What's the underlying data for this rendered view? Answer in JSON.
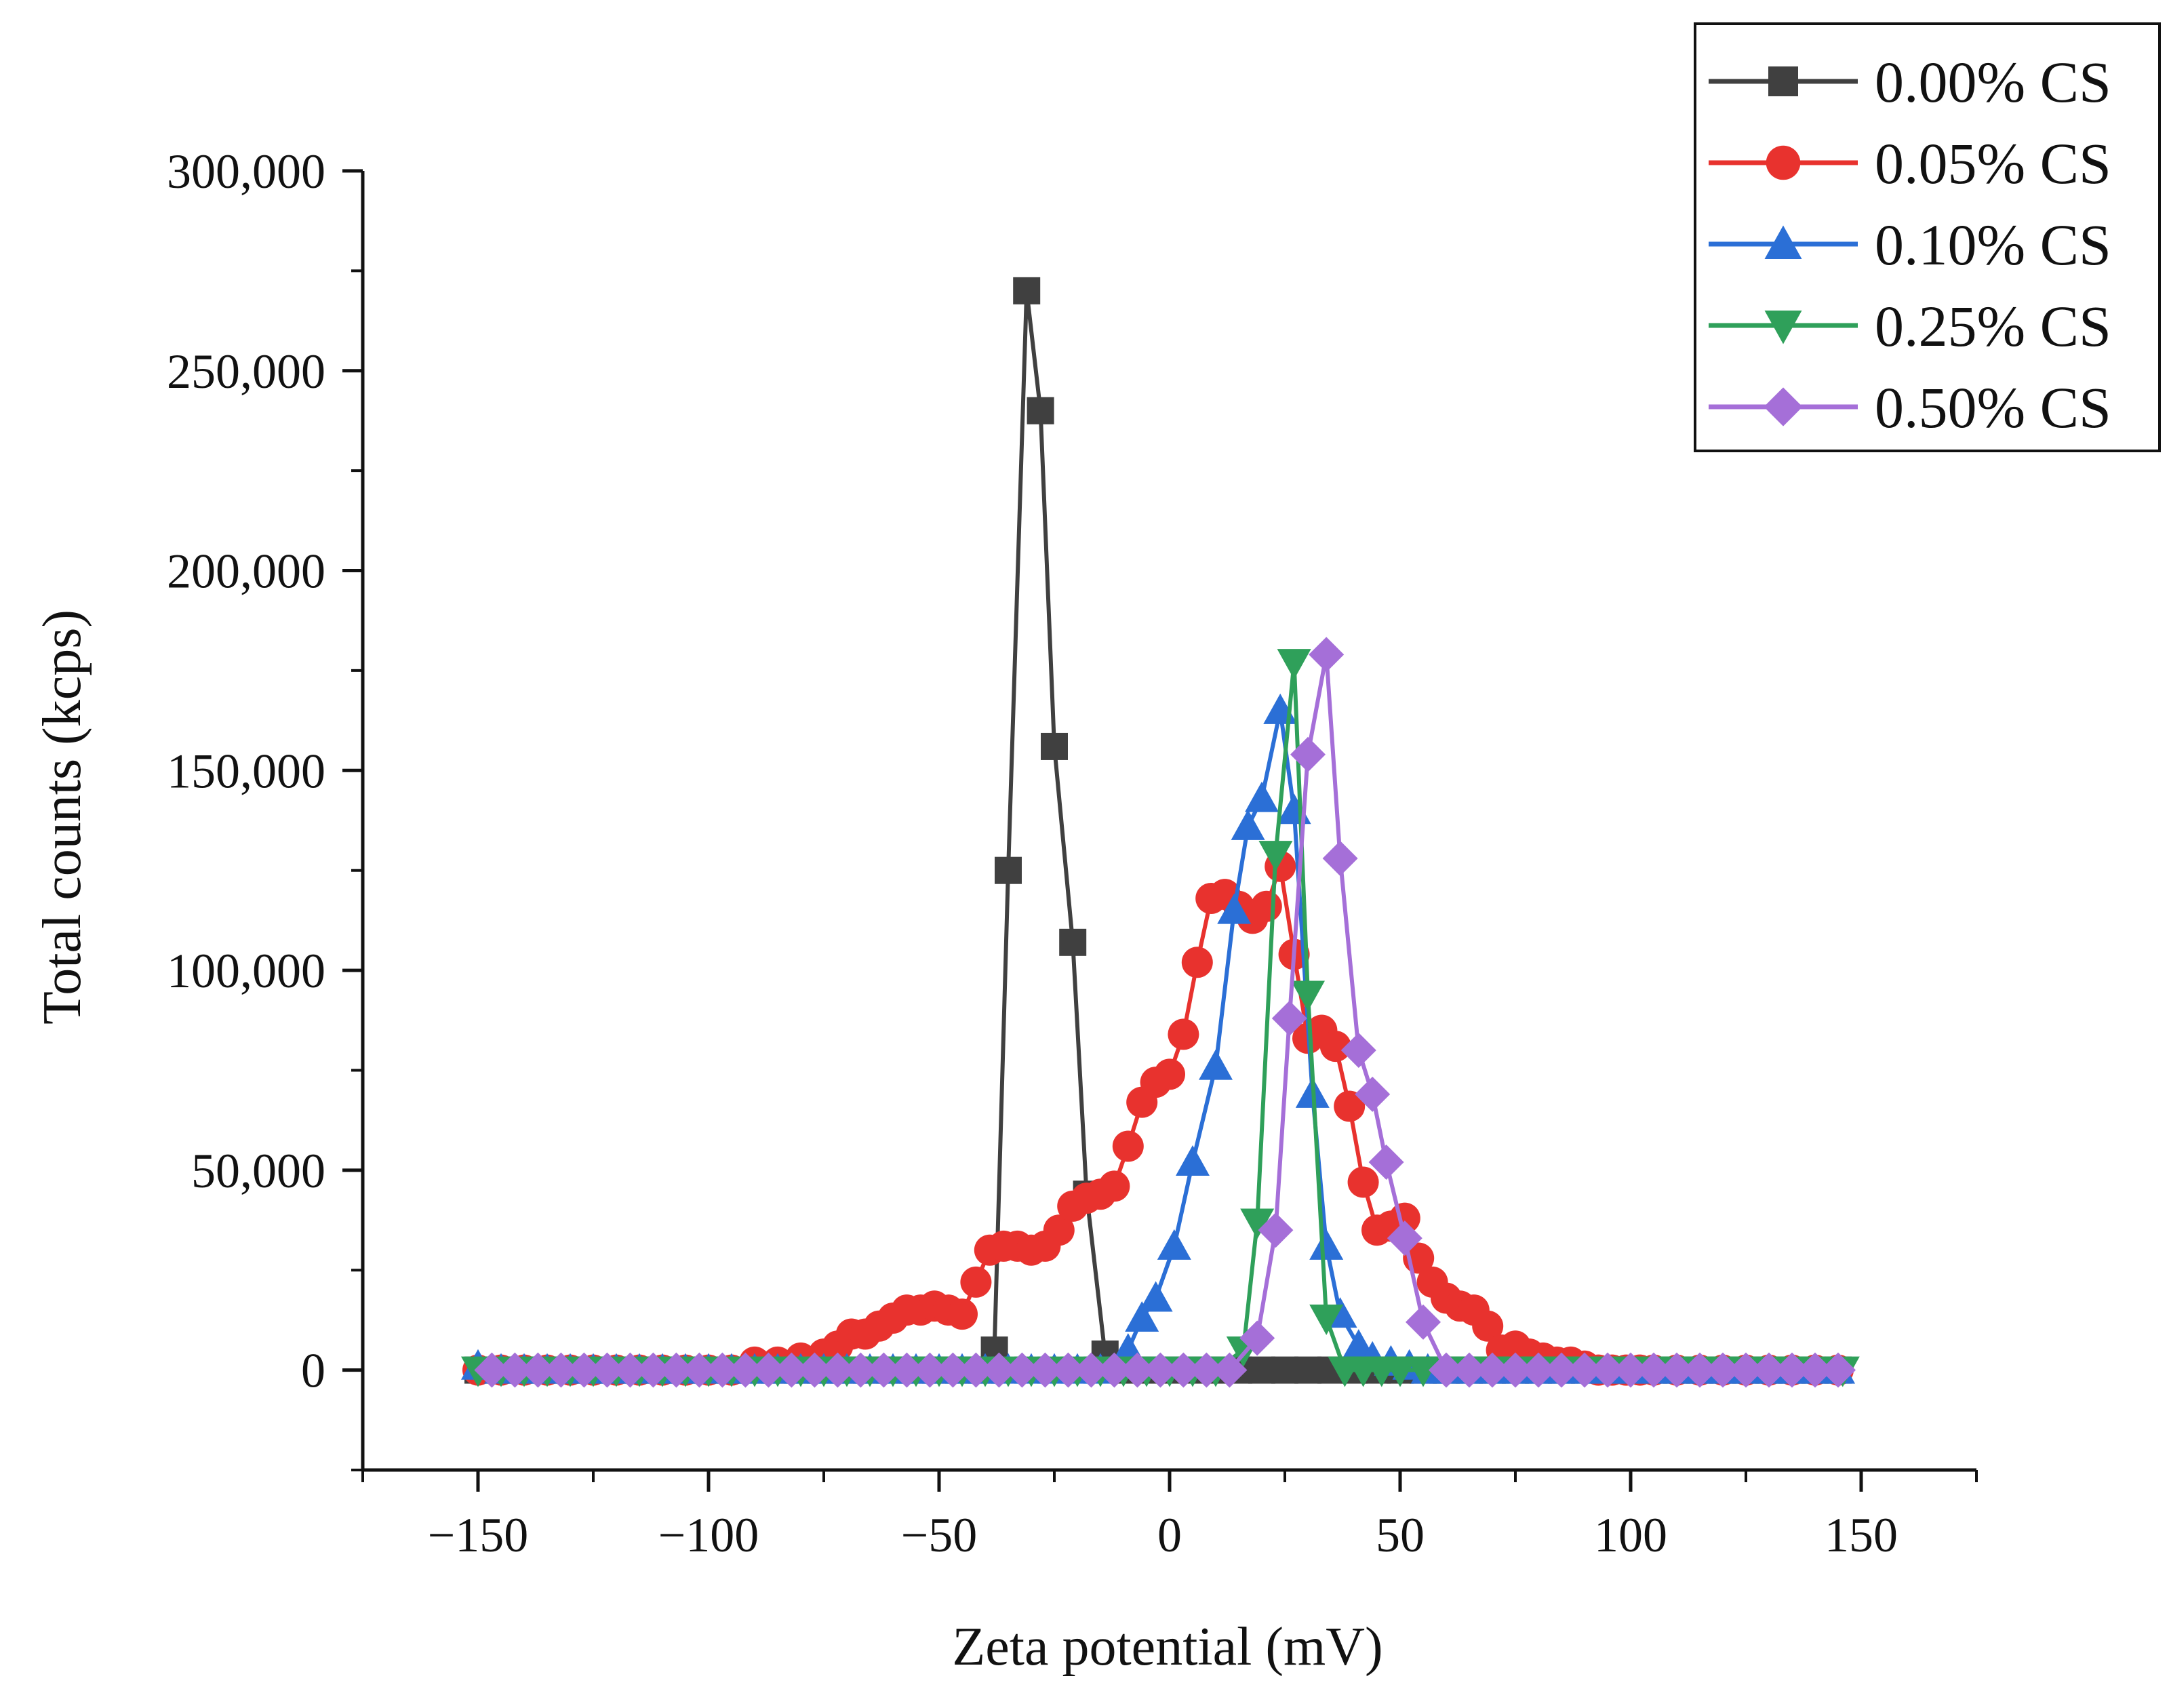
{
  "chart_data": {
    "type": "line",
    "title": "",
    "xlabel": "Zeta potential (mV)",
    "ylabel": "Total counts (kcps)",
    "xlim": [
      -175,
      175
    ],
    "ylim": [
      -25000,
      300000
    ],
    "x_ticks": [
      -150,
      -100,
      -50,
      0,
      50,
      100,
      150
    ],
    "x_tick_labels": [
      "−150",
      "−100",
      "−50",
      "0",
      "50",
      "100",
      "150"
    ],
    "y_ticks": [
      0,
      50000,
      100000,
      150000,
      200000,
      250000,
      300000
    ],
    "y_tick_labels": [
      "0",
      "50,000",
      "100,000",
      "150,000",
      "200,000",
      "250,000",
      "300,000"
    ],
    "legend_position": "top-right",
    "series": [
      {
        "name": "0.00% CS",
        "color": "#404040",
        "marker": "square",
        "x": [
          -150,
          -145,
          -140,
          -135,
          -130,
          -125,
          -120,
          -115,
          -110,
          -105,
          -100,
          -95,
          -90,
          -85,
          -80,
          -75,
          -70,
          -65,
          -60,
          -55,
          -50,
          -45,
          -40,
          -38,
          -35,
          -31,
          -28,
          -25,
          -21,
          -18,
          -14,
          -10,
          -5,
          0,
          5,
          10,
          15,
          20,
          25,
          30,
          35,
          40,
          45,
          50,
          55,
          60,
          65,
          70,
          75,
          80,
          85,
          90,
          95,
          100,
          105,
          110,
          115,
          120,
          125,
          130,
          135,
          140,
          145
        ],
        "y": [
          0,
          0,
          0,
          0,
          0,
          0,
          0,
          0,
          0,
          0,
          0,
          0,
          0,
          0,
          0,
          0,
          0,
          0,
          0,
          0,
          0,
          0,
          0,
          5000,
          125000,
          270000,
          240000,
          156000,
          107000,
          44000,
          4000,
          0,
          0,
          0,
          0,
          0,
          0,
          0,
          0,
          0,
          0,
          0,
          0,
          0,
          0,
          0,
          0,
          0,
          0,
          0,
          0,
          0,
          0,
          0,
          0,
          0,
          0,
          0,
          0,
          0,
          0,
          0,
          0
        ]
      },
      {
        "name": "0.05% CS",
        "color": "#e8322e",
        "marker": "circle",
        "x": [
          -150,
          -145,
          -140,
          -135,
          -130,
          -125,
          -120,
          -115,
          -110,
          -105,
          -100,
          -95,
          -90,
          -85,
          -80,
          -75,
          -72,
          -69,
          -66,
          -63,
          -60,
          -57,
          -54,
          -51,
          -48,
          -45,
          -42,
          -39,
          -36,
          -33,
          -30,
          -27,
          -24,
          -21,
          -18,
          -15,
          -12,
          -9,
          -6,
          -3,
          0,
          3,
          6,
          9,
          12,
          15,
          18,
          21,
          24,
          27,
          30,
          33,
          36,
          39,
          42,
          45,
          48,
          51,
          54,
          57,
          60,
          63,
          66,
          69,
          72,
          75,
          78,
          81,
          84,
          87,
          90,
          93,
          96,
          99,
          102,
          105,
          110,
          115,
          120,
          125,
          130,
          135,
          140,
          145
        ],
        "y": [
          0,
          0,
          0,
          0,
          0,
          0,
          0,
          0,
          0,
          0,
          0,
          0,
          2000,
          2000,
          3000,
          4000,
          6000,
          9000,
          9000,
          11000,
          13000,
          15000,
          15000,
          16000,
          15000,
          14000,
          22000,
          30000,
          31000,
          31000,
          30000,
          31000,
          35000,
          41000,
          43000,
          44000,
          46000,
          56000,
          67000,
          72000,
          74000,
          84000,
          102000,
          118000,
          119000,
          116000,
          113000,
          116000,
          126000,
          104000,
          83000,
          85000,
          81000,
          66000,
          47000,
          35000,
          36000,
          38000,
          28000,
          22000,
          18000,
          16000,
          15000,
          11000,
          5000,
          6000,
          4000,
          3000,
          2000,
          2000,
          1000,
          0,
          0,
          0,
          0,
          0,
          0,
          0,
          0,
          0,
          0,
          0,
          0,
          0
        ]
      },
      {
        "name": "0.10% CS",
        "color": "#2b6fd6",
        "marker": "triangle-up",
        "x": [
          -150,
          -145,
          -140,
          -135,
          -130,
          -125,
          -120,
          -115,
          -110,
          -105,
          -100,
          -95,
          -90,
          -85,
          -80,
          -75,
          -70,
          -65,
          -60,
          -55,
          -50,
          -45,
          -40,
          -35,
          -30,
          -25,
          -20,
          -15,
          -9,
          -6,
          -3,
          1,
          5,
          10,
          14,
          17,
          20,
          24,
          27,
          31,
          34,
          37,
          41,
          44,
          48,
          52,
          56,
          60,
          65,
          70,
          75,
          80,
          85,
          90,
          95,
          100,
          105,
          110,
          115,
          120,
          125,
          130,
          135,
          140,
          145
        ],
        "y": [
          1000,
          0,
          0,
          0,
          0,
          0,
          0,
          0,
          0,
          0,
          0,
          0,
          0,
          0,
          0,
          0,
          0,
          0,
          0,
          0,
          0,
          0,
          0,
          0,
          0,
          0,
          0,
          0,
          5000,
          13000,
          18000,
          31000,
          52000,
          76000,
          115000,
          136000,
          143000,
          165000,
          140000,
          69000,
          31000,
          14000,
          6000,
          3000,
          2000,
          1000,
          0,
          0,
          0,
          0,
          0,
          0,
          0,
          0,
          0,
          0,
          0,
          0,
          0,
          0,
          0,
          0,
          0,
          0,
          0
        ]
      },
      {
        "name": "0.25% CS",
        "color": "#2fa05a",
        "marker": "triangle-down",
        "x": [
          -150,
          -145,
          -140,
          -135,
          -130,
          -125,
          -120,
          -115,
          -110,
          -105,
          -100,
          -95,
          -90,
          -85,
          -80,
          -75,
          -70,
          -65,
          -60,
          -55,
          -50,
          -45,
          -40,
          -35,
          -30,
          -25,
          -20,
          -15,
          -10,
          -5,
          0,
          5,
          10,
          16,
          19,
          23,
          27,
          30,
          34,
          38,
          42,
          46,
          50,
          55,
          60,
          65,
          70,
          75,
          80,
          85,
          90,
          95,
          100,
          105,
          110,
          115,
          120,
          125,
          130,
          135,
          140,
          146
        ],
        "y": [
          0,
          0,
          0,
          0,
          0,
          0,
          0,
          0,
          0,
          0,
          0,
          0,
          0,
          0,
          0,
          0,
          0,
          0,
          0,
          0,
          0,
          0,
          0,
          0,
          0,
          0,
          0,
          0,
          0,
          0,
          0,
          0,
          0,
          5000,
          37000,
          129000,
          177000,
          94000,
          13000,
          0,
          0,
          0,
          0,
          0,
          0,
          0,
          0,
          0,
          0,
          0,
          0,
          0,
          0,
          0,
          0,
          0,
          0,
          0,
          0,
          0,
          0,
          0
        ]
      },
      {
        "name": "0.50% CS",
        "color": "#a56fd8",
        "marker": "diamond",
        "x": [
          -147,
          -142,
          -137,
          -132,
          -127,
          -122,
          -117,
          -112,
          -107,
          -102,
          -97,
          -92,
          -87,
          -82,
          -77,
          -72,
          -67,
          -62,
          -57,
          -52,
          -47,
          -42,
          -37,
          -32,
          -27,
          -22,
          -17,
          -12,
          -7,
          -2,
          3,
          8,
          13,
          19,
          23,
          26,
          30,
          34,
          37,
          41,
          44,
          47,
          51,
          55,
          60,
          65,
          70,
          75,
          80,
          85,
          90,
          95,
          100,
          105,
          110,
          115,
          120,
          125,
          130,
          135,
          140,
          145
        ],
        "y": [
          0,
          0,
          0,
          0,
          0,
          0,
          0,
          0,
          0,
          0,
          0,
          0,
          0,
          0,
          0,
          0,
          0,
          0,
          0,
          0,
          0,
          0,
          0,
          0,
          0,
          0,
          0,
          0,
          0,
          0,
          0,
          0,
          0,
          8000,
          35000,
          88000,
          154000,
          179000,
          128000,
          80000,
          69000,
          52000,
          33000,
          12000,
          0,
          0,
          0,
          0,
          0,
          0,
          0,
          0,
          0,
          0,
          0,
          0,
          0,
          0,
          0,
          0,
          0,
          0
        ]
      }
    ]
  }
}
